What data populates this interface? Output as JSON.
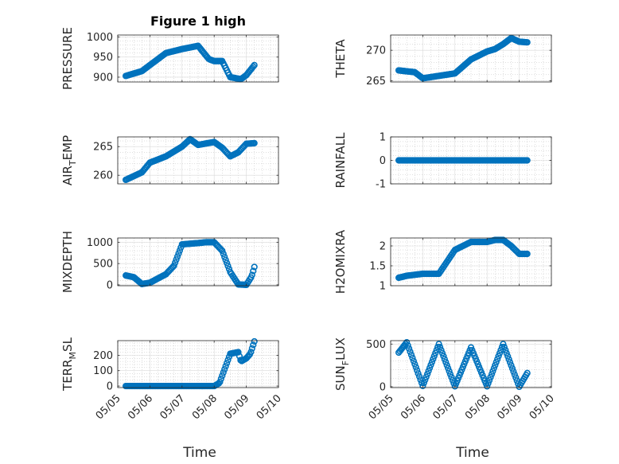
{
  "colors": {
    "marker": "#0072bd",
    "axes": "#262626",
    "background": "#ffffff"
  },
  "chart_data": [
    {
      "type": "scatter",
      "title": "Figure 1 high",
      "ylabel": {
        "main": "PRESSURE"
      },
      "xlim": [
        "05/05",
        "05/10"
      ],
      "ylim": [
        888,
        1005
      ],
      "yticks": [
        900,
        950,
        1000
      ],
      "ytick_labels": [
        "900",
        "950",
        "1000"
      ],
      "grid": true,
      "x": [
        "05/05 06:00",
        "05/05 18:00",
        "05/06 00:00",
        "05/06 12:00",
        "05/07 00:00",
        "05/07 12:00",
        "05/07 20:00",
        "05/08 00:00",
        "05/08 06:00",
        "05/08 12:00",
        "05/08 20:00",
        "05/09 00:00",
        "05/09 06:00"
      ],
      "y": [
        903,
        915,
        930,
        960,
        970,
        978,
        945,
        940,
        940,
        900,
        895,
        905,
        930
      ]
    },
    {
      "type": "scatter",
      "title": "",
      "ylabel": {
        "main": "THETA"
      },
      "xlim": [
        "05/05",
        "05/10"
      ],
      "ylim": [
        264.8,
        272.5
      ],
      "yticks": [
        265,
        270
      ],
      "ytick_labels": [
        "265",
        "270"
      ],
      "grid": true,
      "x": [
        "05/05 06:00",
        "05/05 18:00",
        "05/06 00:00",
        "05/06 12:00",
        "05/07 00:00",
        "05/07 12:00",
        "05/08 00:00",
        "05/08 06:00",
        "05/08 12:00",
        "05/08 18:00",
        "05/09 00:00",
        "05/09 06:00"
      ],
      "y": [
        266.7,
        266.4,
        265.4,
        265.8,
        266.2,
        268.5,
        269.8,
        270.2,
        271.0,
        272.0,
        271.4,
        271.3
      ]
    },
    {
      "type": "scatter",
      "title": "",
      "ylabel": {
        "main": "AIR",
        "sub": "T",
        "rest": "EMP"
      },
      "xlim": [
        "05/05",
        "05/10"
      ],
      "ylim": [
        258.5,
        266.7
      ],
      "yticks": [
        260,
        265
      ],
      "ytick_labels": [
        "260",
        "265"
      ],
      "grid": true,
      "x": [
        "05/05 06:00",
        "05/05 18:00",
        "05/06 00:00",
        "05/06 12:00",
        "05/07 00:00",
        "05/07 06:00",
        "05/07 12:00",
        "05/08 00:00",
        "05/08 06:00",
        "05/08 12:00",
        "05/08 18:00",
        "05/09 00:00",
        "05/09 06:00"
      ],
      "y": [
        259.2,
        260.5,
        262.2,
        263.3,
        265.0,
        266.3,
        265.3,
        265.8,
        264.8,
        263.3,
        264.0,
        265.5,
        265.6
      ]
    },
    {
      "type": "scatter",
      "title": "",
      "ylabel": {
        "main": "RAINFALL"
      },
      "xlim": [
        "05/05",
        "05/10"
      ],
      "ylim": [
        -1,
        1
      ],
      "yticks": [
        -1,
        0,
        1
      ],
      "ytick_labels": [
        "-1",
        "0",
        "1"
      ],
      "grid": true,
      "x": [
        "05/05 06:00",
        "05/09 06:00"
      ],
      "y": [
        0,
        0
      ]
    },
    {
      "type": "scatter",
      "title": "",
      "ylabel": {
        "main": "MIXDEPTH"
      },
      "xlim": [
        "05/05",
        "05/10"
      ],
      "ylim": [
        -20,
        1100
      ],
      "yticks": [
        0,
        500,
        1000
      ],
      "ytick_labels": [
        "0",
        "500",
        "1000"
      ],
      "grid": true,
      "x": [
        "05/05 06:00",
        "05/05 12:00",
        "05/05 18:00",
        "05/06 00:00",
        "05/06 12:00",
        "05/06 18:00",
        "05/07 00:00",
        "05/07 12:00",
        "05/07 18:00",
        "05/08 00:00",
        "05/08 06:00",
        "05/08 12:00",
        "05/08 18:00",
        "05/09 00:00",
        "05/09 04:00",
        "05/09 06:00"
      ],
      "y": [
        220,
        180,
        20,
        50,
        250,
        450,
        950,
        980,
        1000,
        1000,
        800,
        300,
        10,
        0,
        200,
        420
      ]
    },
    {
      "type": "scatter",
      "title": "",
      "ylabel": {
        "main": "H2OMIXRA"
      },
      "xlim": [
        "05/05",
        "05/10"
      ],
      "ylim": [
        1,
        2.2
      ],
      "yticks": [
        1,
        1.5,
        2
      ],
      "ytick_labels": [
        "1",
        "1.5",
        "2"
      ],
      "grid": true,
      "x": [
        "05/05 06:00",
        "05/05 12:00",
        "05/06 00:00",
        "05/06 12:00",
        "05/06 18:00",
        "05/07 00:00",
        "05/07 12:00",
        "05/08 00:00",
        "05/08 06:00",
        "05/08 12:00",
        "05/08 18:00",
        "05/09 00:00",
        "05/09 06:00"
      ],
      "y": [
        1.2,
        1.25,
        1.3,
        1.3,
        1.6,
        1.9,
        2.1,
        2.1,
        2.15,
        2.15,
        2.0,
        1.8,
        1.8
      ]
    },
    {
      "type": "scatter",
      "title": "",
      "ylabel": {
        "main": "TERR",
        "sub": "M",
        "rest": "SL"
      },
      "xlim": [
        "05/05",
        "05/10"
      ],
      "ylim": [
        -10,
        295
      ],
      "yticks": [
        0,
        100,
        200
      ],
      "ytick_labels": [
        "0",
        "100",
        "200"
      ],
      "grid": true,
      "xticks": [
        "05/05",
        "05/06",
        "05/07",
        "05/08",
        "05/09",
        "05/10"
      ],
      "xlabel": "Time",
      "x": [
        "05/05 06:00",
        "05/06 00:00",
        "05/07 00:00",
        "05/08 00:00",
        "05/08 04:00",
        "05/08 12:00",
        "05/08 18:00",
        "05/08 20:00",
        "05/09 00:00",
        "05/09 03:00",
        "05/09 06:00"
      ],
      "y": [
        0,
        0,
        0,
        0,
        20,
        210,
        220,
        160,
        180,
        210,
        290
      ]
    },
    {
      "type": "scatter",
      "title": "",
      "ylabel": {
        "main": "SUN",
        "sub": "F",
        "rest": "LUX"
      },
      "xlim": [
        "05/05",
        "05/10"
      ],
      "ylim": [
        -10,
        540
      ],
      "yticks": [
        0,
        500
      ],
      "ytick_labels": [
        "0",
        "500"
      ],
      "grid": true,
      "xticks": [
        "05/05",
        "05/06",
        "05/07",
        "05/08",
        "05/09",
        "05/10"
      ],
      "xlabel": "Time",
      "x": [
        "05/05 06:00",
        "05/05 12:00",
        "05/06 00:00",
        "05/06 12:00",
        "05/07 00:00",
        "05/07 12:00",
        "05/08 00:00",
        "05/08 12:00",
        "05/09 00:00",
        "05/09 06:00"
      ],
      "y": [
        400,
        520,
        10,
        500,
        5,
        460,
        5,
        500,
        0,
        160
      ]
    }
  ]
}
